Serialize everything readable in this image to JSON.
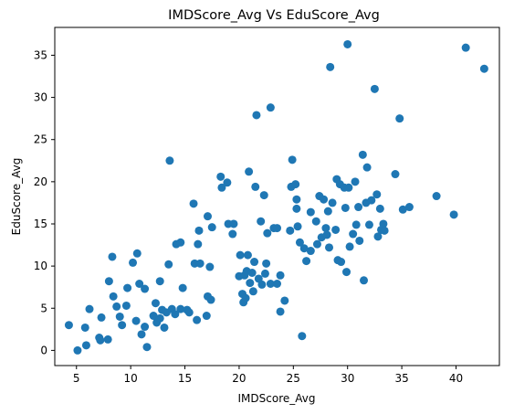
{
  "chart_data": {
    "type": "scatter",
    "title": "IMDScore_Avg Vs EduScore_Avg",
    "xlabel": "IMDScore_Avg",
    "ylabel": "EduScore_Avg",
    "xlim": [
      3.0,
      44.0
    ],
    "ylim": [
      -1.8,
      38.3
    ],
    "xticks": [
      5,
      10,
      15,
      20,
      25,
      30,
      35,
      40
    ],
    "yticks": [
      0,
      5,
      10,
      15,
      20,
      25,
      30,
      35
    ],
    "grid": false,
    "marker_color": "#1f77b4",
    "points": [
      [
        4.3,
        3.0
      ],
      [
        5.1,
        0.0
      ],
      [
        5.8,
        2.7
      ],
      [
        5.9,
        0.6
      ],
      [
        6.2,
        4.9
      ],
      [
        7.1,
        1.5
      ],
      [
        7.2,
        1.2
      ],
      [
        7.3,
        3.9
      ],
      [
        7.9,
        1.3
      ],
      [
        8.0,
        8.2
      ],
      [
        8.3,
        11.1
      ],
      [
        8.4,
        6.4
      ],
      [
        8.7,
        5.2
      ],
      [
        9.0,
        4.0
      ],
      [
        9.2,
        3.0
      ],
      [
        9.6,
        5.3
      ],
      [
        9.7,
        7.4
      ],
      [
        10.2,
        10.4
      ],
      [
        10.6,
        11.5
      ],
      [
        10.5,
        3.5
      ],
      [
        10.8,
        7.9
      ],
      [
        11.0,
        1.9
      ],
      [
        11.3,
        2.8
      ],
      [
        11.3,
        7.3
      ],
      [
        11.5,
        0.4
      ],
      [
        12.1,
        4.1
      ],
      [
        12.3,
        5.6
      ],
      [
        12.4,
        3.3
      ],
      [
        12.7,
        3.8
      ],
      [
        12.7,
        8.2
      ],
      [
        12.9,
        4.8
      ],
      [
        13.1,
        2.7
      ],
      [
        13.5,
        10.2
      ],
      [
        13.3,
        4.5
      ],
      [
        13.6,
        22.5
      ],
      [
        13.8,
        4.9
      ],
      [
        14.1,
        4.3
      ],
      [
        14.2,
        12.6
      ],
      [
        14.6,
        12.8
      ],
      [
        14.6,
        4.9
      ],
      [
        14.8,
        7.4
      ],
      [
        15.2,
        4.8
      ],
      [
        15.4,
        4.5
      ],
      [
        15.8,
        17.4
      ],
      [
        15.9,
        10.3
      ],
      [
        16.1,
        3.6
      ],
      [
        16.2,
        12.6
      ],
      [
        16.3,
        14.2
      ],
      [
        16.4,
        10.3
      ],
      [
        17.0,
        4.1
      ],
      [
        17.1,
        15.9
      ],
      [
        17.1,
        6.4
      ],
      [
        17.3,
        9.9
      ],
      [
        17.4,
        6.0
      ],
      [
        17.5,
        14.6
      ],
      [
        18.3,
        20.6
      ],
      [
        18.4,
        19.3
      ],
      [
        18.9,
        19.9
      ],
      [
        19.0,
        15.0
      ],
      [
        19.4,
        13.8
      ],
      [
        19.5,
        15.0
      ],
      [
        20.0,
        8.8
      ],
      [
        20.1,
        11.3
      ],
      [
        20.3,
        6.7
      ],
      [
        20.4,
        5.7
      ],
      [
        20.5,
        8.9
      ],
      [
        20.6,
        6.2
      ],
      [
        20.7,
        9.4
      ],
      [
        20.8,
        11.3
      ],
      [
        20.9,
        21.2
      ],
      [
        21.0,
        8.0
      ],
      [
        21.2,
        9.2
      ],
      [
        21.3,
        7.0
      ],
      [
        21.4,
        10.5
      ],
      [
        21.5,
        19.4
      ],
      [
        21.6,
        27.9
      ],
      [
        21.8,
        8.5
      ],
      [
        22.0,
        15.3
      ],
      [
        22.1,
        7.8
      ],
      [
        22.3,
        18.4
      ],
      [
        22.4,
        9.1
      ],
      [
        22.5,
        10.3
      ],
      [
        22.6,
        13.9
      ],
      [
        22.9,
        28.8
      ],
      [
        22.9,
        7.9
      ],
      [
        23.2,
        14.5
      ],
      [
        23.5,
        14.5
      ],
      [
        23.5,
        7.9
      ],
      [
        23.8,
        8.9
      ],
      [
        23.8,
        4.6
      ],
      [
        24.2,
        5.9
      ],
      [
        24.7,
        14.2
      ],
      [
        24.8,
        19.4
      ],
      [
        24.9,
        22.6
      ],
      [
        25.2,
        19.7
      ],
      [
        25.3,
        17.9
      ],
      [
        25.3,
        16.8
      ],
      [
        25.4,
        14.7
      ],
      [
        25.6,
        12.8
      ],
      [
        25.8,
        1.7
      ],
      [
        26.0,
        12.1
      ],
      [
        26.2,
        10.6
      ],
      [
        26.6,
        16.4
      ],
      [
        26.6,
        11.8
      ],
      [
        27.1,
        15.3
      ],
      [
        27.2,
        12.6
      ],
      [
        27.4,
        18.3
      ],
      [
        27.6,
        13.4
      ],
      [
        27.8,
        17.9
      ],
      [
        28.0,
        14.5
      ],
      [
        28.1,
        13.7
      ],
      [
        28.2,
        16.5
      ],
      [
        28.3,
        12.2
      ],
      [
        28.4,
        33.6
      ],
      [
        28.6,
        17.5
      ],
      [
        28.9,
        14.3
      ],
      [
        29.0,
        20.3
      ],
      [
        29.1,
        10.7
      ],
      [
        29.3,
        19.7
      ],
      [
        29.4,
        10.5
      ],
      [
        29.7,
        19.3
      ],
      [
        29.8,
        16.9
      ],
      [
        29.9,
        9.3
      ],
      [
        30.0,
        36.3
      ],
      [
        30.1,
        19.3
      ],
      [
        30.2,
        12.3
      ],
      [
        30.5,
        13.8
      ],
      [
        30.7,
        20.0
      ],
      [
        30.8,
        14.9
      ],
      [
        31.0,
        17.0
      ],
      [
        31.1,
        13.0
      ],
      [
        31.4,
        23.2
      ],
      [
        31.5,
        8.3
      ],
      [
        31.7,
        17.5
      ],
      [
        31.8,
        21.7
      ],
      [
        32.0,
        14.9
      ],
      [
        32.2,
        17.8
      ],
      [
        32.5,
        31.0
      ],
      [
        32.7,
        18.5
      ],
      [
        32.8,
        13.5
      ],
      [
        33.0,
        16.8
      ],
      [
        33.1,
        14.3
      ],
      [
        33.3,
        15.0
      ],
      [
        33.4,
        14.2
      ],
      [
        34.4,
        20.9
      ],
      [
        34.8,
        27.5
      ],
      [
        35.1,
        16.7
      ],
      [
        35.7,
        17.0
      ],
      [
        38.2,
        18.3
      ],
      [
        39.8,
        16.1
      ],
      [
        40.9,
        35.9
      ],
      [
        42.6,
        33.4
      ]
    ]
  }
}
